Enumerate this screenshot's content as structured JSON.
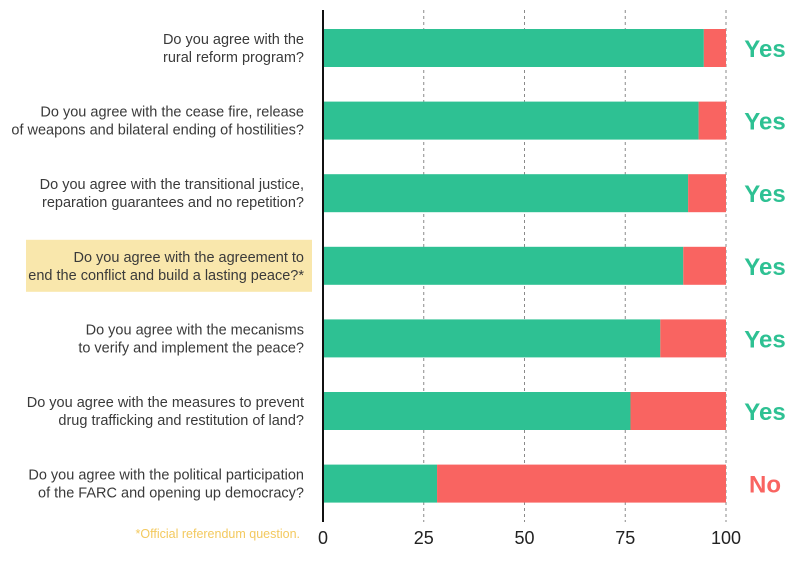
{
  "colors": {
    "yes": "#2ec193",
    "no": "#f96461",
    "highlight": "#f9e7ac",
    "footnote": "#f3c95e",
    "axis": "#111111",
    "grid": "#8a8a8a"
  },
  "footnote": "*Official referendum question.",
  "chart_data": {
    "type": "bar",
    "orientation": "horizontal",
    "stacked": true,
    "xlim": [
      0,
      100
    ],
    "xticks": [
      0,
      25,
      50,
      75,
      100
    ],
    "grid": "vertical dashed",
    "categories": [
      [
        "Do you agree with the",
        "rural reform program?"
      ],
      [
        "Do you agree with the cease fire, release",
        "of weapons and bilateral ending of hostilities?"
      ],
      [
        "Do you agree with the transitional justice,",
        "reparation guarantees and no repetition?"
      ],
      [
        "Do you agree with the agreement to",
        "end the conflict and build a lasting peace?*"
      ],
      [
        "Do you agree with the mecanisms",
        "to verify and implement the peace?"
      ],
      [
        "Do you agree with the measures to prevent",
        "drug trafficking and restitution of land?"
      ],
      [
        "Do you agree with the political participation",
        "of the FARC and opening up democracy?"
      ]
    ],
    "highlighted_index": 3,
    "series": [
      {
        "key": "yes",
        "values": [
          94.5,
          93.2,
          90.6,
          89.4,
          83.7,
          76.3,
          28.3
        ]
      },
      {
        "key": "no",
        "values": [
          5.5,
          6.8,
          9.4,
          10.6,
          16.3,
          23.7,
          71.7
        ]
      }
    ],
    "verdicts": [
      "Yes",
      "Yes",
      "Yes",
      "Yes",
      "Yes",
      "Yes",
      "No"
    ]
  }
}
